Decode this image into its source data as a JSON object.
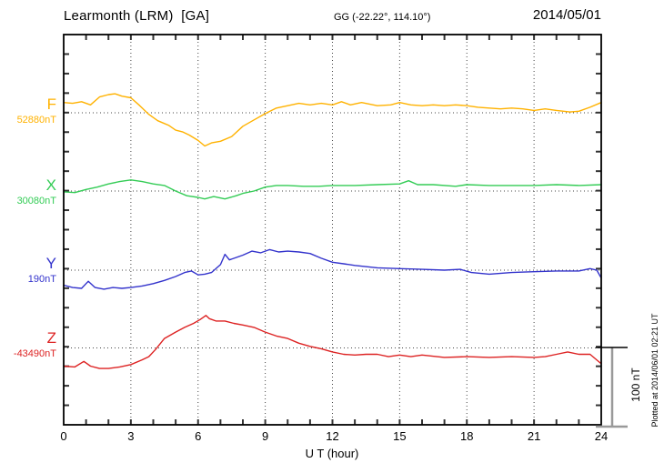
{
  "header": {
    "title": "Learmonth (LRM)  [GA]",
    "coordinates": "GG (-22.22°, 114.10°)",
    "date": "2014/05/01"
  },
  "axis": {
    "xlabel": "U T (hour)"
  },
  "scalebar": {
    "label": "100 nT",
    "value_nT": 100
  },
  "footer": {
    "plotted_at": "Plotted at 2014/06/01 02:21 UT"
  },
  "chart_data": {
    "type": "line",
    "title": "Learmonth (LRM) [GA] magnetogram 2014/05/01",
    "xlabel": "U T (hour)",
    "x_range": [
      0,
      24
    ],
    "x_ticks": [
      0,
      3,
      6,
      9,
      12,
      15,
      18,
      21,
      24
    ],
    "grid": "dotted at 3-hour intervals and at each channel baseline",
    "scale_bar_nT": 100,
    "series": [
      {
        "name": "F",
        "color": "#FFB200",
        "baseline_label": "52880nT",
        "baseline_nT": 52880,
        "points_h_dnT": [
          [
            0,
            13
          ],
          [
            0.4,
            12
          ],
          [
            0.8,
            14
          ],
          [
            1.2,
            10
          ],
          [
            1.6,
            20
          ],
          [
            2,
            23
          ],
          [
            2.3,
            24
          ],
          [
            2.6,
            21
          ],
          [
            3,
            19
          ],
          [
            3.4,
            9
          ],
          [
            3.8,
            -2
          ],
          [
            4.2,
            -10
          ],
          [
            4.45,
            -13
          ],
          [
            4.7,
            -16
          ],
          [
            5,
            -22
          ],
          [
            5.3,
            -24
          ],
          [
            5.6,
            -28
          ],
          [
            6,
            -35
          ],
          [
            6.3,
            -42
          ],
          [
            6.6,
            -38
          ],
          [
            7,
            -36
          ],
          [
            7.5,
            -30
          ],
          [
            8,
            -17
          ],
          [
            8.5,
            -9
          ],
          [
            9,
            -1
          ],
          [
            9.5,
            6
          ],
          [
            10,
            9
          ],
          [
            10.5,
            12
          ],
          [
            11,
            10
          ],
          [
            11.5,
            12
          ],
          [
            12,
            10
          ],
          [
            12.4,
            14
          ],
          [
            12.8,
            10
          ],
          [
            13.3,
            13
          ],
          [
            14,
            9
          ],
          [
            14.6,
            10
          ],
          [
            15,
            13
          ],
          [
            15.5,
            10
          ],
          [
            16,
            9
          ],
          [
            16.5,
            10
          ],
          [
            17,
            9
          ],
          [
            17.5,
            10
          ],
          [
            18,
            9
          ],
          [
            18.5,
            7
          ],
          [
            19,
            6
          ],
          [
            19.5,
            5
          ],
          [
            20,
            6
          ],
          [
            20.5,
            5
          ],
          [
            21,
            3
          ],
          [
            21.5,
            5
          ],
          [
            22,
            3
          ],
          [
            22.6,
            1
          ],
          [
            23,
            2
          ],
          [
            23.5,
            7
          ],
          [
            24,
            13
          ]
        ]
      },
      {
        "name": "X",
        "color": "#33CC55",
        "baseline_label": "30080nT",
        "baseline_nT": 30080,
        "points_h_dnT": [
          [
            0,
            -1
          ],
          [
            0.5,
            -2
          ],
          [
            1,
            2
          ],
          [
            1.5,
            5
          ],
          [
            2,
            9
          ],
          [
            2.5,
            12
          ],
          [
            3,
            14
          ],
          [
            3.5,
            12
          ],
          [
            4,
            9
          ],
          [
            4.5,
            7
          ],
          [
            5,
            0
          ],
          [
            5.5,
            -6
          ],
          [
            6,
            -8
          ],
          [
            6.3,
            -10
          ],
          [
            6.7,
            -7
          ],
          [
            7.2,
            -10
          ],
          [
            7.7,
            -6
          ],
          [
            8,
            -3
          ],
          [
            8.5,
            0
          ],
          [
            9,
            5
          ],
          [
            9.5,
            7
          ],
          [
            10,
            7
          ],
          [
            10.7,
            6
          ],
          [
            11.4,
            6
          ],
          [
            12,
            7
          ],
          [
            13,
            7
          ],
          [
            14,
            8
          ],
          [
            15,
            9
          ],
          [
            15.4,
            13
          ],
          [
            15.8,
            8
          ],
          [
            16.5,
            8
          ],
          [
            17.5,
            6
          ],
          [
            18,
            8
          ],
          [
            19,
            7
          ],
          [
            20,
            7
          ],
          [
            21,
            7
          ],
          [
            22,
            8
          ],
          [
            23,
            7
          ],
          [
            24,
            8
          ]
        ]
      },
      {
        "name": "Y",
        "color": "#3333CC",
        "baseline_label": "190nT",
        "baseline_nT": 190,
        "points_h_dnT": [
          [
            0,
            -19
          ],
          [
            0.4,
            -22
          ],
          [
            0.8,
            -23
          ],
          [
            1.1,
            -14
          ],
          [
            1.4,
            -22
          ],
          [
            1.8,
            -24
          ],
          [
            2.2,
            -22
          ],
          [
            2.6,
            -23
          ],
          [
            3,
            -22
          ],
          [
            3.5,
            -20
          ],
          [
            4,
            -17
          ],
          [
            4.5,
            -13
          ],
          [
            5,
            -8
          ],
          [
            5.4,
            -3
          ],
          [
            5.7,
            -1
          ],
          [
            6,
            -6
          ],
          [
            6.3,
            -5
          ],
          [
            6.6,
            -3
          ],
          [
            7,
            7
          ],
          [
            7.2,
            20
          ],
          [
            7.4,
            13
          ],
          [
            7.7,
            16
          ],
          [
            8,
            19
          ],
          [
            8.4,
            24
          ],
          [
            8.8,
            22
          ],
          [
            9.2,
            26
          ],
          [
            9.6,
            23
          ],
          [
            10,
            24
          ],
          [
            10.5,
            23
          ],
          [
            11,
            21
          ],
          [
            11.5,
            15
          ],
          [
            12,
            10
          ],
          [
            12.5,
            8
          ],
          [
            13,
            6
          ],
          [
            14,
            3
          ],
          [
            15,
            2
          ],
          [
            16,
            1
          ],
          [
            17,
            0
          ],
          [
            17.7,
            1
          ],
          [
            18.2,
            -3
          ],
          [
            19,
            -5
          ],
          [
            20,
            -3
          ],
          [
            21,
            -2
          ],
          [
            22,
            -1
          ],
          [
            23,
            -1
          ],
          [
            23.5,
            2
          ],
          [
            23.8,
            0
          ],
          [
            24,
            -10
          ]
        ]
      },
      {
        "name": "Z",
        "color": "#DD2222",
        "baseline_label": "-43490nT",
        "baseline_nT": -43490,
        "points_h_dnT": [
          [
            0,
            -23
          ],
          [
            0.5,
            -24
          ],
          [
            0.9,
            -17
          ],
          [
            1.2,
            -23
          ],
          [
            1.6,
            -26
          ],
          [
            2,
            -26
          ],
          [
            2.5,
            -24
          ],
          [
            3,
            -21
          ],
          [
            3.5,
            -15
          ],
          [
            3.8,
            -11
          ],
          [
            4.1,
            -2
          ],
          [
            4.5,
            12
          ],
          [
            5,
            20
          ],
          [
            5.4,
            26
          ],
          [
            5.8,
            31
          ],
          [
            6.1,
            36
          ],
          [
            6.35,
            41
          ],
          [
            6.5,
            37
          ],
          [
            6.8,
            34
          ],
          [
            7.2,
            34
          ],
          [
            7.6,
            31
          ],
          [
            8,
            29
          ],
          [
            8.5,
            26
          ],
          [
            9,
            20
          ],
          [
            9.5,
            15
          ],
          [
            10,
            12
          ],
          [
            10.5,
            6
          ],
          [
            11,
            2
          ],
          [
            11.5,
            -1
          ],
          [
            12,
            -5
          ],
          [
            12.5,
            -8
          ],
          [
            13,
            -9
          ],
          [
            13.5,
            -8
          ],
          [
            14,
            -8
          ],
          [
            14.5,
            -11
          ],
          [
            15,
            -9
          ],
          [
            15.5,
            -11
          ],
          [
            16,
            -9
          ],
          [
            17,
            -12
          ],
          [
            18,
            -11
          ],
          [
            19,
            -12
          ],
          [
            20,
            -11
          ],
          [
            21,
            -12
          ],
          [
            21.5,
            -11
          ],
          [
            22,
            -8
          ],
          [
            22.5,
            -5
          ],
          [
            23,
            -8
          ],
          [
            23.5,
            -8
          ],
          [
            24,
            -20
          ]
        ]
      }
    ]
  }
}
